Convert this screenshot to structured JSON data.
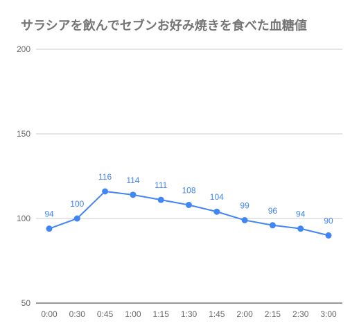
{
  "chart_data": {
    "type": "line",
    "title": "サラシアを飲んでセブンお好み焼きを食べた血糖値",
    "xlabel": "",
    "ylabel": "",
    "categories": [
      "0:00",
      "0:30",
      "0:45",
      "1:00",
      "1:15",
      "1:30",
      "1:45",
      "2:00",
      "2:15",
      "2:30",
      "3:00"
    ],
    "series": [
      {
        "values": [
          94,
          100,
          116,
          114,
          111,
          108,
          104,
          99,
          96,
          94,
          90
        ],
        "color": "#4285f4"
      }
    ],
    "data_labels": true,
    "y_ticks": [
      50,
      100,
      150,
      200
    ],
    "ylim": [
      50,
      200
    ],
    "grid": true,
    "legend": "none"
  }
}
